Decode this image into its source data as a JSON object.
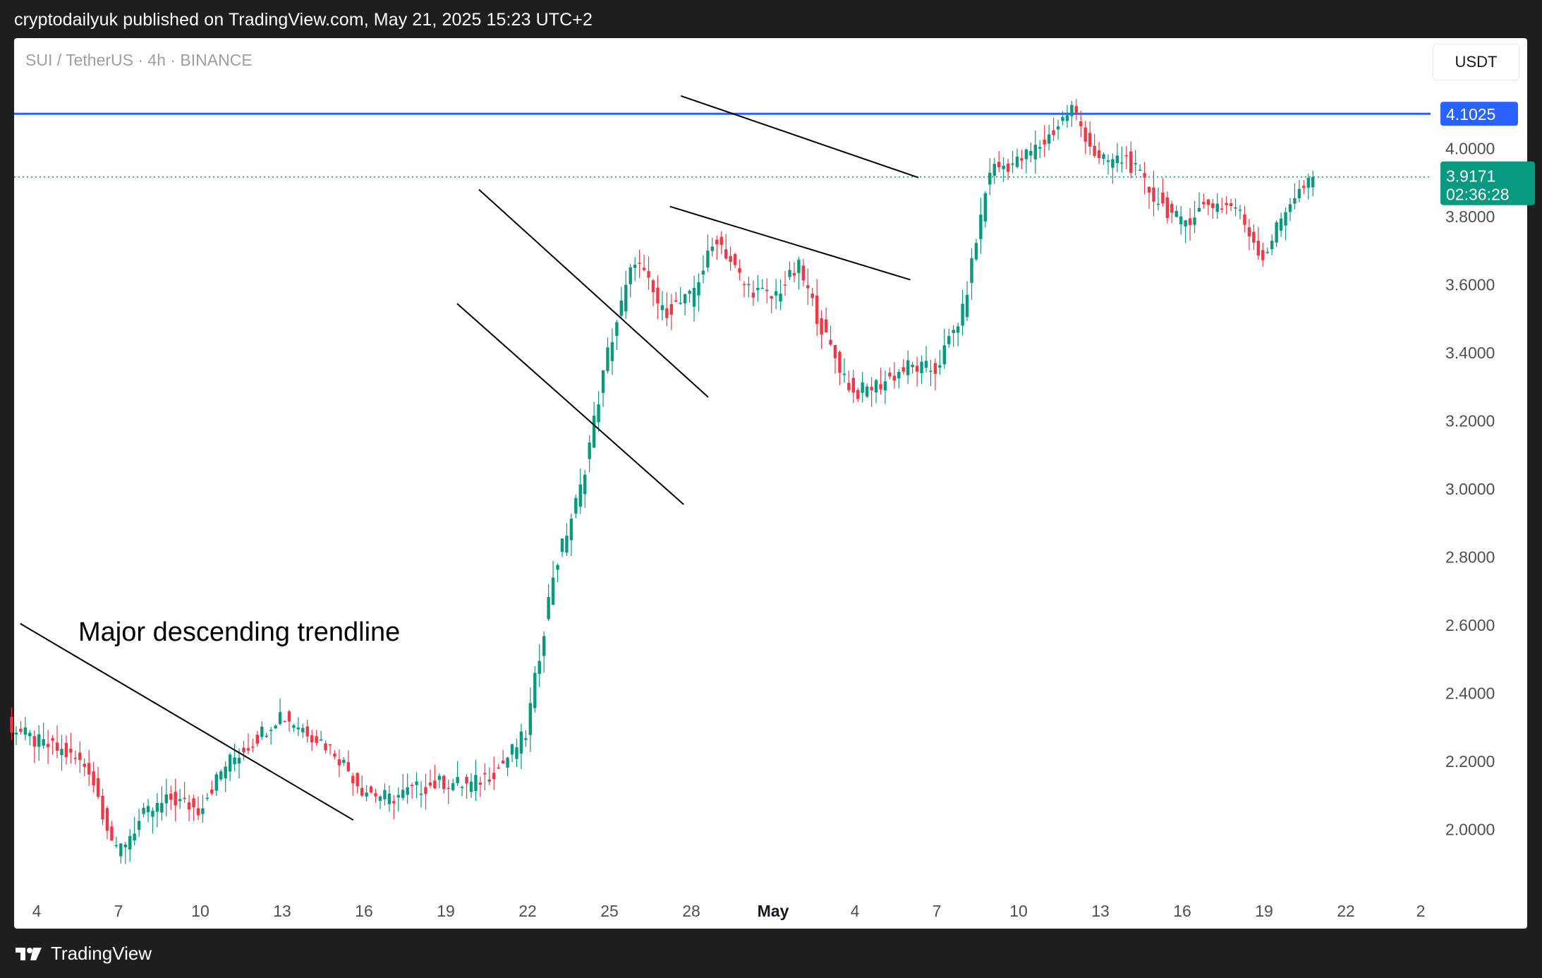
{
  "header": {
    "publisher_line": "cryptodailyuk published on TradingView.com, May 21, 2025 15:23 UTC+2"
  },
  "legend": {
    "symbol_line": "SUI / TetherUS · 4h · BINANCE"
  },
  "price_scale": {
    "currency_button": "USDT",
    "tick_labels": [
      "4.0000",
      "3.8000",
      "3.6000",
      "3.4000",
      "3.2000",
      "3.0000",
      "2.8000",
      "2.6000",
      "2.4000",
      "2.2000",
      "2.0000"
    ],
    "horizontal_level_label": "4.1025",
    "last_price_label": "3.9171",
    "countdown_label": "02:36:28"
  },
  "time_scale": {
    "tick_labels": [
      "4",
      "7",
      "10",
      "13",
      "16",
      "19",
      "22",
      "25",
      "28",
      "May",
      "4",
      "7",
      "10",
      "13",
      "16",
      "19",
      "22",
      "2"
    ]
  },
  "annotations": {
    "trendline_label": "Major descending trendline"
  },
  "footer": {
    "brand": "TradingView"
  },
  "colors": {
    "up_candle": "#089981",
    "down_candle": "#f23645",
    "horizontal_level": "#2962ff",
    "trendlines": "#000000",
    "background": "#1e1e1e"
  },
  "chart_data": {
    "type": "candlestick",
    "symbol": "SUI / TetherUS",
    "interval": "4h",
    "exchange": "BINANCE",
    "ylim": [
      1.85,
      4.27
    ],
    "horizontal_level": 4.1025,
    "last_price": 3.9171,
    "series": [
      {
        "date": "Apr 3",
        "close": 2.31
      },
      {
        "date": "Apr 4",
        "close": 2.26
      },
      {
        "date": "Apr 5",
        "close": 2.23
      },
      {
        "date": "Apr 6",
        "close": 2.18
      },
      {
        "date": "Apr 7",
        "close": 1.93
      },
      {
        "date": "Apr 8",
        "close": 2.04
      },
      {
        "date": "Apr 9",
        "close": 2.09
      },
      {
        "date": "Apr 10",
        "close": 2.06
      },
      {
        "date": "Apr 11",
        "close": 2.19
      },
      {
        "date": "Apr 12",
        "close": 2.26
      },
      {
        "date": "Apr 13",
        "close": 2.34
      },
      {
        "date": "Apr 14",
        "close": 2.29
      },
      {
        "date": "Apr 15",
        "close": 2.23
      },
      {
        "date": "Apr 16",
        "close": 2.12
      },
      {
        "date": "Apr 17",
        "close": 2.09
      },
      {
        "date": "Apr 18",
        "close": 2.12
      },
      {
        "date": "Apr 19",
        "close": 2.14
      },
      {
        "date": "Apr 20",
        "close": 2.13
      },
      {
        "date": "Apr 21",
        "close": 2.18
      },
      {
        "date": "Apr 22",
        "close": 2.28
      },
      {
        "date": "Apr 23",
        "close": 2.75
      },
      {
        "date": "Apr 24",
        "close": 3.0
      },
      {
        "date": "Apr 25",
        "close": 3.4
      },
      {
        "date": "Apr 26",
        "close": 3.68
      },
      {
        "date": "Apr 27",
        "close": 3.52
      },
      {
        "date": "Apr 28",
        "close": 3.56
      },
      {
        "date": "Apr 29",
        "close": 3.74
      },
      {
        "date": "Apr 30",
        "close": 3.6
      },
      {
        "date": "May 1",
        "close": 3.56
      },
      {
        "date": "May 2",
        "close": 3.65
      },
      {
        "date": "May 3",
        "close": 3.44
      },
      {
        "date": "May 4",
        "close": 3.28
      },
      {
        "date": "May 5",
        "close": 3.31
      },
      {
        "date": "May 6",
        "close": 3.36
      },
      {
        "date": "May 7",
        "close": 3.35
      },
      {
        "date": "May 8",
        "close": 3.52
      },
      {
        "date": "May 9",
        "close": 3.94
      },
      {
        "date": "May 10",
        "close": 3.96
      },
      {
        "date": "May 11",
        "close": 4.02
      },
      {
        "date": "May 12",
        "close": 4.12
      },
      {
        "date": "May 13",
        "close": 3.96
      },
      {
        "date": "May 14",
        "close": 3.97
      },
      {
        "date": "May 15",
        "close": 3.86
      },
      {
        "date": "May 16",
        "close": 3.78
      },
      {
        "date": "May 17",
        "close": 3.84
      },
      {
        "date": "May 18",
        "close": 3.83
      },
      {
        "date": "May 19",
        "close": 3.68
      },
      {
        "date": "May 20",
        "close": 3.85
      },
      {
        "date": "May 21",
        "close": 3.9171
      }
    ]
  }
}
